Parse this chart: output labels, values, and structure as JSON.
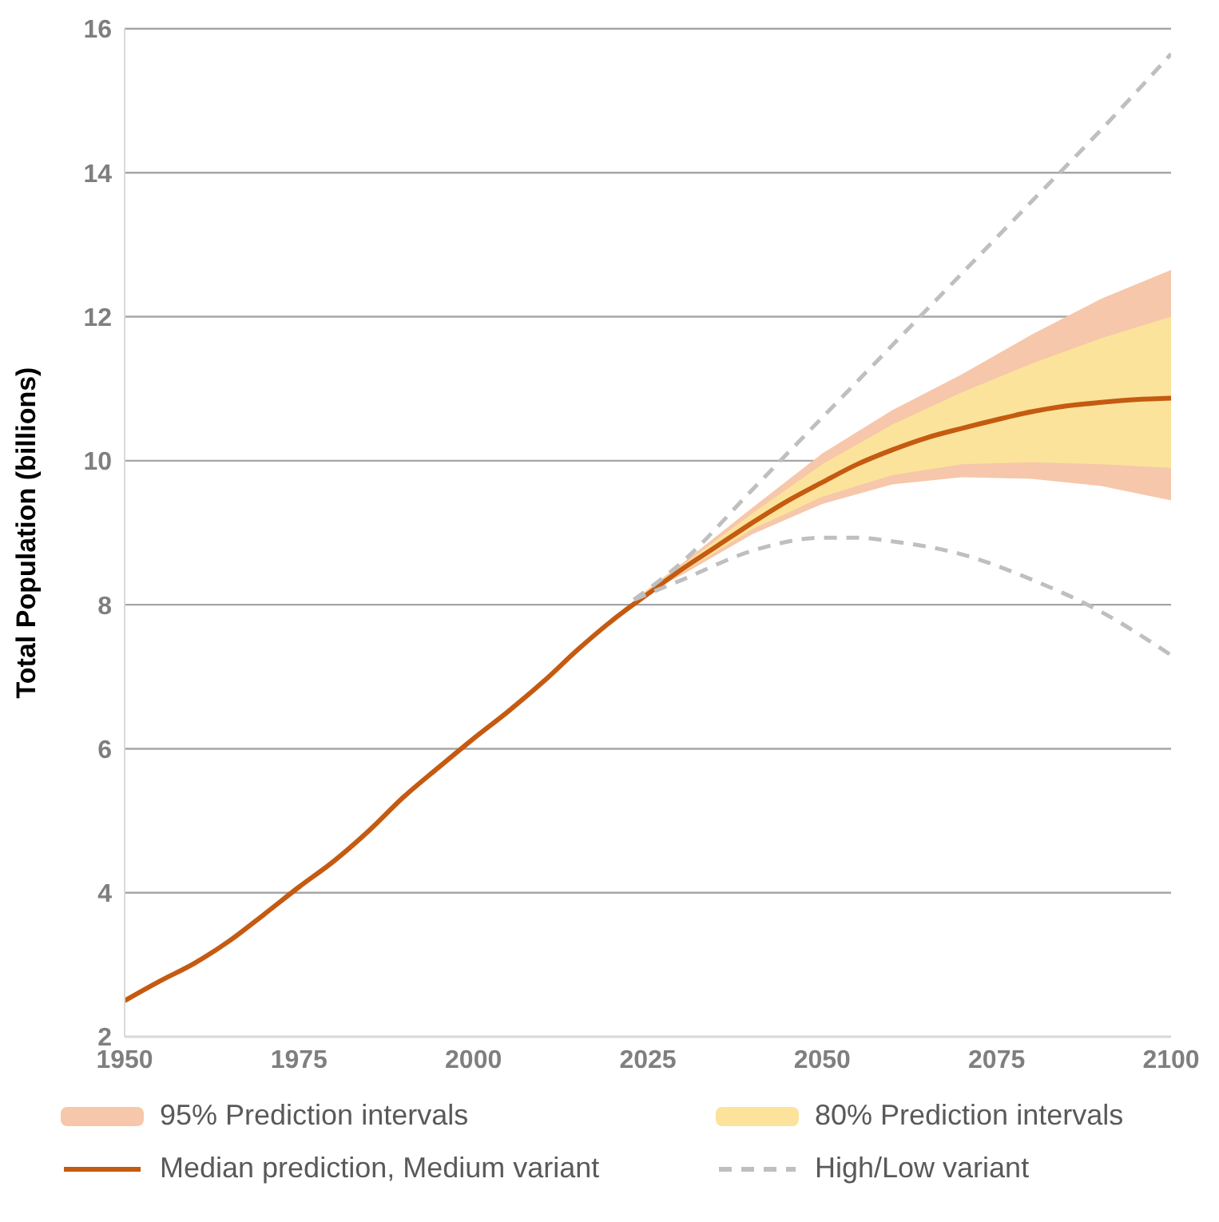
{
  "chart_data": {
    "type": "line",
    "ylabel": "Total Population (billions)",
    "xlim": [
      1950,
      2100
    ],
    "xticks": [
      1950,
      1975,
      2000,
      2025,
      2050,
      2075,
      2100
    ],
    "ylim": [
      2,
      16
    ],
    "yticks": [
      2,
      4,
      6,
      8,
      10,
      12,
      14,
      16
    ],
    "grid": "y",
    "legend": "bottom",
    "series": [
      {
        "name": "95% Prediction intervals",
        "type": "line",
        "color": "#f6c7aa",
        "x": [
          2023,
          2030,
          2040,
          2050,
          2060,
          2070,
          2080,
          2090,
          2100
        ],
        "values": [
          null,
          null,
          null,
          null,
          null,
          null,
          null,
          null,
          null
        ],
        "lower": [
          8.07,
          8.42,
          8.98,
          9.4,
          9.67,
          9.77,
          9.75,
          9.65,
          9.45
        ],
        "upper": [
          8.07,
          8.58,
          9.35,
          10.1,
          10.7,
          11.2,
          11.75,
          12.25,
          12.65
        ]
      },
      {
        "name": "80% Prediction intervals",
        "type": "line",
        "color": "#fbe39b",
        "x": [
          2023,
          2030,
          2040,
          2050,
          2060,
          2070,
          2080,
          2090,
          2100
        ],
        "values": [
          null,
          null,
          null,
          null,
          null,
          null,
          null,
          null,
          null
        ],
        "lower": [
          8.07,
          8.45,
          9.05,
          9.5,
          9.8,
          9.95,
          9.98,
          9.95,
          9.9
        ],
        "upper": [
          8.07,
          8.55,
          9.27,
          9.95,
          10.5,
          10.95,
          11.35,
          11.7,
          12.0
        ]
      },
      {
        "name": "Median prediction, Medium variant",
        "type": "line",
        "color": "#c55a11",
        "line_style": "solid",
        "x": [
          1950,
          1955,
          1960,
          1965,
          1970,
          1975,
          1980,
          1985,
          1990,
          1995,
          2000,
          2005,
          2010,
          2015,
          2020,
          2025,
          2030,
          2035,
          2040,
          2045,
          2050,
          2055,
          2060,
          2065,
          2070,
          2075,
          2080,
          2085,
          2090,
          2095,
          2100
        ],
        "values": [
          2.5,
          2.77,
          3.02,
          3.33,
          3.7,
          4.08,
          4.44,
          4.86,
          5.33,
          5.74,
          6.14,
          6.52,
          6.93,
          7.38,
          7.79,
          8.15,
          8.5,
          8.82,
          9.14,
          9.44,
          9.7,
          9.95,
          10.15,
          10.32,
          10.45,
          10.57,
          10.68,
          10.76,
          10.81,
          10.85,
          10.87
        ]
      },
      {
        "name": "High/Low variant",
        "type": "line",
        "color": "#bfbfbf",
        "line_style": "dashed",
        "x": [
          2023,
          2030,
          2040,
          2050,
          2060,
          2070,
          2080,
          2090,
          2100
        ],
        "values": [
          8.07,
          8.6,
          9.6,
          10.6,
          11.6,
          12.6,
          13.6,
          14.6,
          15.65
        ]
      },
      {
        "type": "line",
        "color": "#bfbfbf",
        "line_style": "dashed",
        "x": [
          2023,
          2030,
          2040,
          2050,
          2055,
          2060,
          2070,
          2080,
          2090,
          2100
        ],
        "values": [
          8.07,
          8.35,
          8.75,
          8.93,
          8.93,
          8.88,
          8.7,
          8.35,
          7.9,
          7.3
        ]
      }
    ]
  }
}
